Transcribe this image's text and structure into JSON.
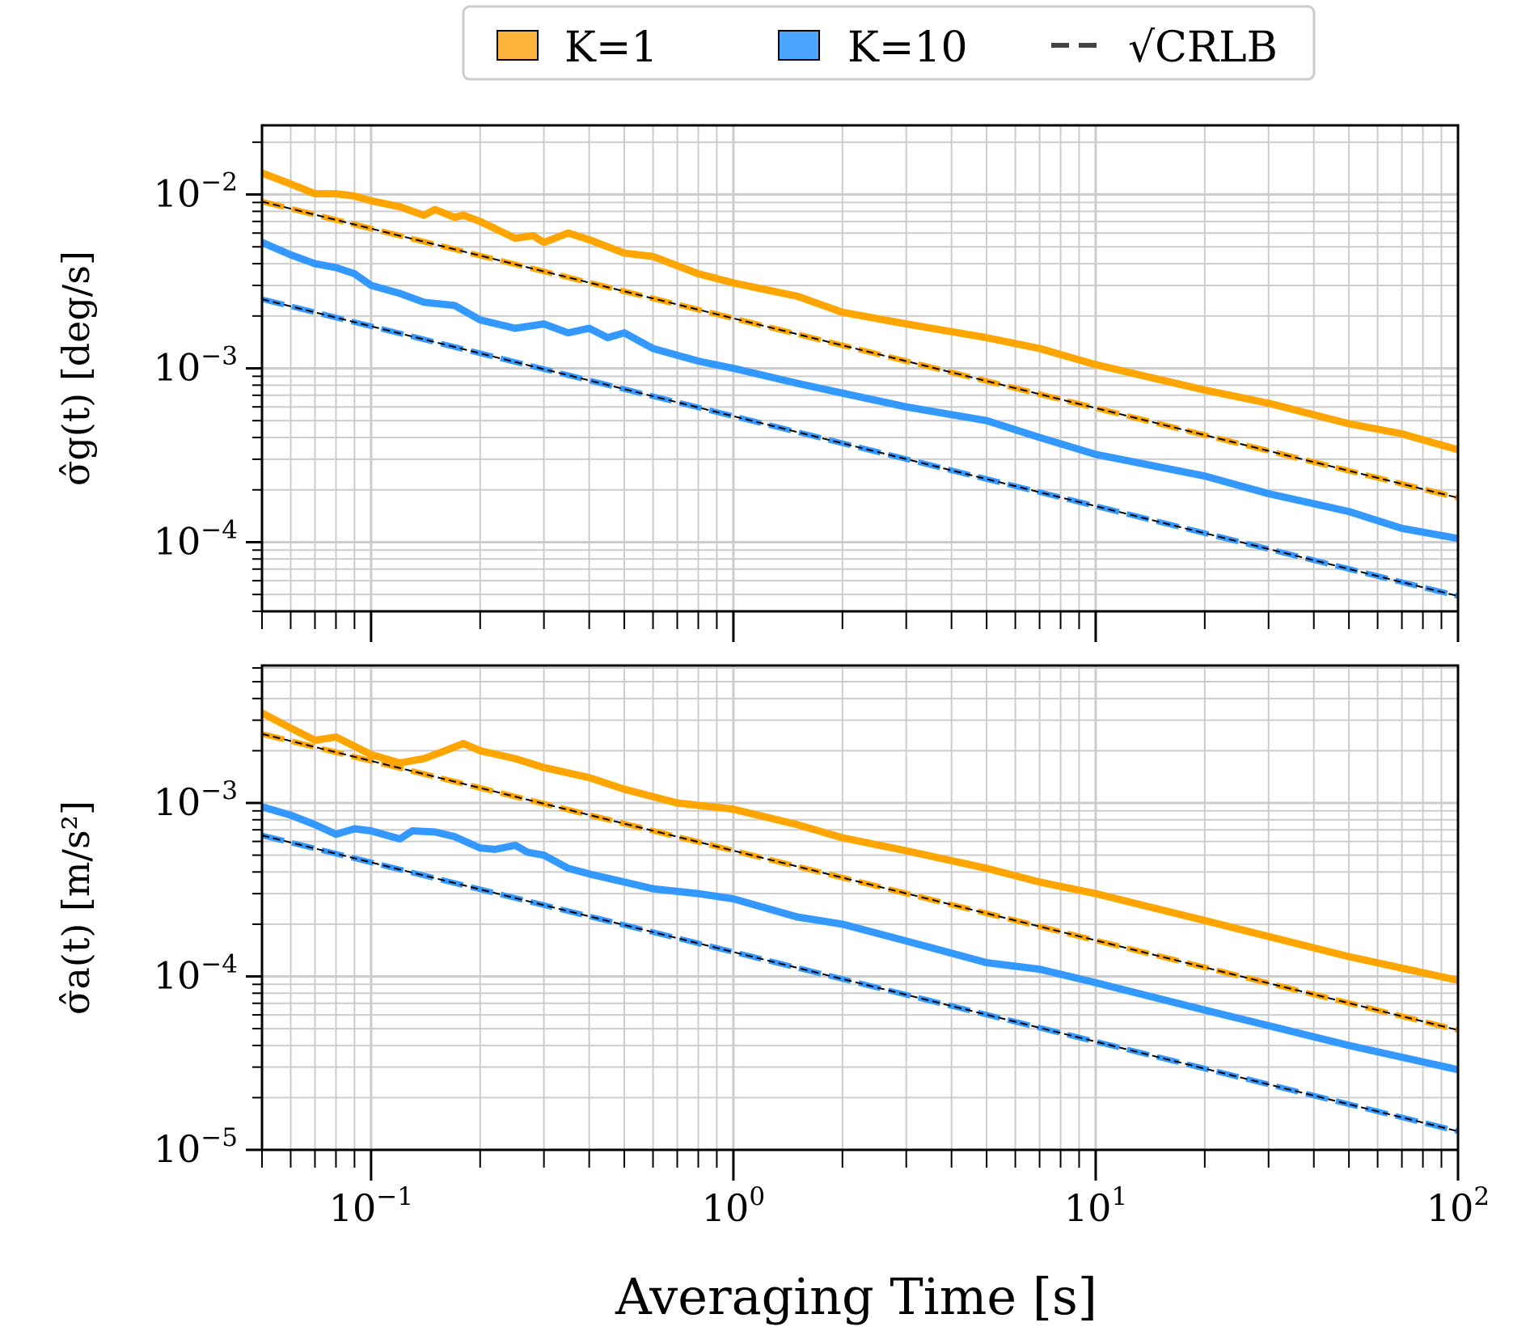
{
  "legend": {
    "items": [
      {
        "label": "K=1",
        "swatch_color": "#FFB43C",
        "kind": "patch"
      },
      {
        "label": "K=10",
        "swatch_color": "#4CA6FF",
        "kind": "patch"
      },
      {
        "label": "√CRLB",
        "swatch_color": "#444444",
        "kind": "dashed-line"
      }
    ]
  },
  "x_axis_label": "Averaging Time [s]",
  "chart_data": [
    {
      "type": "line",
      "ylabel": "σ̂g(t) [deg/s]",
      "xscale": "log",
      "yscale": "log",
      "xlim": [
        0.05,
        100
      ],
      "ylim": [
        4e-05,
        0.025
      ],
      "grid": true,
      "x_tick_labels": [
        "10⁻¹",
        "10⁰",
        "10¹",
        "10²"
      ],
      "y_tick_labels": [
        "10⁻⁴",
        "10⁻³",
        "10⁻²"
      ],
      "series": [
        {
          "name": "K=1",
          "style": "solid",
          "color": "#FFA500",
          "x": [
            0.05,
            0.06,
            0.07,
            0.08,
            0.09,
            0.1,
            0.12,
            0.14,
            0.15,
            0.17,
            0.18,
            0.2,
            0.25,
            0.28,
            0.3,
            0.35,
            0.4,
            0.5,
            0.6,
            0.8,
            1,
            1.5,
            2,
            3,
            5,
            7,
            10,
            20,
            30,
            50,
            70,
            100
          ],
          "y": [
            0.0133,
            0.0115,
            0.0101,
            0.0101,
            0.0098,
            0.0092,
            0.0085,
            0.0076,
            0.0082,
            0.0074,
            0.0076,
            0.007,
            0.0056,
            0.0058,
            0.0053,
            0.006,
            0.0055,
            0.0046,
            0.0044,
            0.0035,
            0.0031,
            0.0026,
            0.0021,
            0.0018,
            0.0015,
            0.0013,
            0.00105,
            0.00075,
            0.00063,
            0.00048,
            0.00042,
            0.00034
          ]
        },
        {
          "name": "K=10",
          "style": "solid",
          "color": "#3399FF",
          "x": [
            0.05,
            0.06,
            0.07,
            0.08,
            0.09,
            0.1,
            0.12,
            0.14,
            0.17,
            0.2,
            0.25,
            0.3,
            0.35,
            0.4,
            0.45,
            0.5,
            0.6,
            0.8,
            1,
            1.5,
            2,
            3,
            5,
            7,
            10,
            20,
            30,
            50,
            70,
            100
          ],
          "y": [
            0.0053,
            0.0045,
            0.004,
            0.0038,
            0.0035,
            0.003,
            0.0027,
            0.0024,
            0.0023,
            0.0019,
            0.0017,
            0.0018,
            0.0016,
            0.0017,
            0.0015,
            0.0016,
            0.0013,
            0.0011,
            0.001,
            0.00082,
            0.00072,
            0.0006,
            0.0005,
            0.0004,
            0.00032,
            0.00024,
            0.00019,
            0.00015,
            0.00012,
            0.000105
          ]
        },
        {
          "name": "√CRLB",
          "style": "dashed",
          "color": "#FFA500",
          "x": [
            0.05,
            100
          ],
          "y": [
            0.0091,
            0.00018
          ]
        },
        {
          "name": "√CRLB",
          "style": "dashed",
          "color": "#3399FF",
          "x": [
            0.05,
            100
          ],
          "y": [
            0.0025,
            4.9e-05
          ]
        }
      ]
    },
    {
      "type": "line",
      "ylabel": "σ̂a(t) [m/s²]",
      "xscale": "log",
      "yscale": "log",
      "xlim": [
        0.05,
        100
      ],
      "ylim": [
        1e-05,
        0.0062
      ],
      "grid": true,
      "xlabel": "Averaging Time [s]",
      "x_tick_labels": [
        "10⁻¹",
        "10⁰",
        "10¹",
        "10²"
      ],
      "y_tick_labels": [
        "10⁻⁵",
        "10⁻⁴",
        "10⁻³"
      ],
      "series": [
        {
          "name": "K=1",
          "style": "solid",
          "color": "#FFA500",
          "x": [
            0.05,
            0.06,
            0.07,
            0.08,
            0.1,
            0.12,
            0.14,
            0.16,
            0.18,
            0.2,
            0.25,
            0.3,
            0.4,
            0.5,
            0.7,
            1,
            1.5,
            2,
            3,
            5,
            7,
            10,
            20,
            30,
            50,
            100
          ],
          "y": [
            0.0033,
            0.0027,
            0.0023,
            0.0024,
            0.0019,
            0.0017,
            0.0018,
            0.002,
            0.0022,
            0.002,
            0.0018,
            0.0016,
            0.0014,
            0.0012,
            0.001,
            0.00092,
            0.00075,
            0.00063,
            0.00053,
            0.00042,
            0.00035,
            0.0003,
            0.00021,
            0.00017,
            0.00013,
            9.5e-05
          ]
        },
        {
          "name": "K=10",
          "style": "solid",
          "color": "#3399FF",
          "x": [
            0.05,
            0.06,
            0.07,
            0.08,
            0.09,
            0.1,
            0.12,
            0.13,
            0.15,
            0.17,
            0.2,
            0.22,
            0.25,
            0.27,
            0.3,
            0.35,
            0.4,
            0.5,
            0.6,
            0.8,
            1,
            1.5,
            2,
            3,
            5,
            7,
            10,
            20,
            30,
            50,
            100
          ],
          "y": [
            0.00095,
            0.00085,
            0.00075,
            0.00066,
            0.00071,
            0.00069,
            0.00062,
            0.00069,
            0.00068,
            0.00064,
            0.00055,
            0.00054,
            0.00057,
            0.00052,
            0.0005,
            0.00042,
            0.00039,
            0.00035,
            0.00032,
            0.0003,
            0.00028,
            0.00022,
            0.0002,
            0.00016,
            0.00012,
            0.00011,
            9.2e-05,
            6.4e-05,
            5.2e-05,
            4e-05,
            2.9e-05
          ]
        },
        {
          "name": "√CRLB",
          "style": "dashed",
          "color": "#FFA500",
          "x": [
            0.05,
            100
          ],
          "y": [
            0.0025,
            4.9e-05
          ]
        },
        {
          "name": "√CRLB",
          "style": "dashed",
          "color": "#3399FF",
          "x": [
            0.05,
            100
          ],
          "y": [
            0.00065,
            1.28e-05
          ]
        }
      ]
    }
  ]
}
